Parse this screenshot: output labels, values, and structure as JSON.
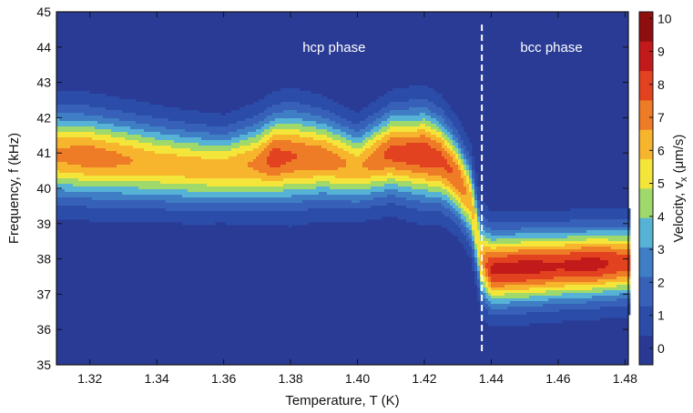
{
  "chart_data": {
    "type": "heatmap",
    "xlabel": "Temperature, T (K)",
    "ylabel": "Frequency, f  (kHz)",
    "colorbar_label": "Velocity, vx (μm/s)",
    "colorbar_label_parts": {
      "prefix": "Velocity, v",
      "subscript": "x",
      "suffix": " (μm/s)"
    },
    "xlim": [
      1.31,
      1.481
    ],
    "ylim": [
      35,
      45
    ],
    "clim": [
      -0.5,
      10.2
    ],
    "x_ticks": [
      "1.32",
      "1.34",
      "1.36",
      "1.38",
      "1.40",
      "1.42",
      "1.44",
      "1.46",
      "1.48"
    ],
    "y_ticks": [
      "35",
      "36",
      "37",
      "38",
      "39",
      "40",
      "41",
      "42",
      "43",
      "44",
      "45"
    ],
    "colorbar_ticks": [
      "0",
      "1",
      "2",
      "3",
      "4",
      "5",
      "6",
      "7",
      "8",
      "9",
      "10"
    ],
    "annotations": [
      {
        "text": "hcp phase",
        "x": 1.393,
        "y": 44.0
      },
      {
        "text": "bcc phase",
        "x": 1.458,
        "y": 44.0
      }
    ],
    "phase_boundary_T": 1.4372,
    "resonance_center_kHz": [
      {
        "T": 1.31,
        "f": 40.95
      },
      {
        "T": 1.32,
        "f": 40.9
      },
      {
        "T": 1.33,
        "f": 40.8
      },
      {
        "T": 1.34,
        "f": 40.7
      },
      {
        "T": 1.35,
        "f": 40.6
      },
      {
        "T": 1.36,
        "f": 40.55
      },
      {
        "T": 1.37,
        "f": 40.7
      },
      {
        "T": 1.375,
        "f": 40.85
      },
      {
        "T": 1.38,
        "f": 40.9
      },
      {
        "T": 1.39,
        "f": 40.85
      },
      {
        "T": 1.4,
        "f": 40.6
      },
      {
        "T": 1.41,
        "f": 41.0
      },
      {
        "T": 1.42,
        "f": 40.95
      },
      {
        "T": 1.425,
        "f": 40.8
      },
      {
        "T": 1.43,
        "f": 40.3
      },
      {
        "T": 1.434,
        "f": 39.6
      },
      {
        "T": 1.437,
        "f": 38.0
      },
      {
        "T": 1.44,
        "f": 37.7
      },
      {
        "T": 1.45,
        "f": 37.75
      },
      {
        "T": 1.46,
        "f": 37.8
      },
      {
        "T": 1.47,
        "f": 37.85
      },
      {
        "T": 1.481,
        "f": 37.9
      }
    ],
    "resonance_halfwidth_kHz": [
      {
        "T": 1.31,
        "w": 1.0
      },
      {
        "T": 1.33,
        "w": 0.95
      },
      {
        "T": 1.36,
        "w": 0.85
      },
      {
        "T": 1.38,
        "w": 1.05
      },
      {
        "T": 1.4,
        "w": 0.85
      },
      {
        "T": 1.42,
        "w": 1.05
      },
      {
        "T": 1.43,
        "w": 0.9
      },
      {
        "T": 1.437,
        "w": 0.9
      },
      {
        "T": 1.44,
        "w": 0.85
      },
      {
        "T": 1.481,
        "w": 0.8
      }
    ],
    "peak_velocity_um_s": [
      {
        "T": 1.31,
        "v": 6.8
      },
      {
        "T": 1.32,
        "v": 7.2
      },
      {
        "T": 1.34,
        "v": 6.3
      },
      {
        "T": 1.36,
        "v": 6.2
      },
      {
        "T": 1.37,
        "v": 6.8
      },
      {
        "T": 1.375,
        "v": 8.0
      },
      {
        "T": 1.38,
        "v": 7.6
      },
      {
        "T": 1.39,
        "v": 7.2
      },
      {
        "T": 1.4,
        "v": 6.4
      },
      {
        "T": 1.41,
        "v": 7.8
      },
      {
        "T": 1.42,
        "v": 8.2
      },
      {
        "T": 1.43,
        "v": 7.4
      },
      {
        "T": 1.436,
        "v": 5.5
      },
      {
        "T": 1.44,
        "v": 8.6
      },
      {
        "T": 1.45,
        "v": 8.8
      },
      {
        "T": 1.46,
        "v": 8.5
      },
      {
        "T": 1.47,
        "v": 8.8
      },
      {
        "T": 1.481,
        "v": 8.0
      }
    ],
    "colormap": [
      "#2a3a94",
      "#2b4ca9",
      "#3761b8",
      "#3f7ec4",
      "#56b3d6",
      "#9fd86b",
      "#f4e53a",
      "#f7b52e",
      "#ee7b26",
      "#e2421f",
      "#c21a1a",
      "#8f0f0f"
    ],
    "plot_background": "#2a3b95",
    "boundary_line_color": "#ffffff"
  }
}
